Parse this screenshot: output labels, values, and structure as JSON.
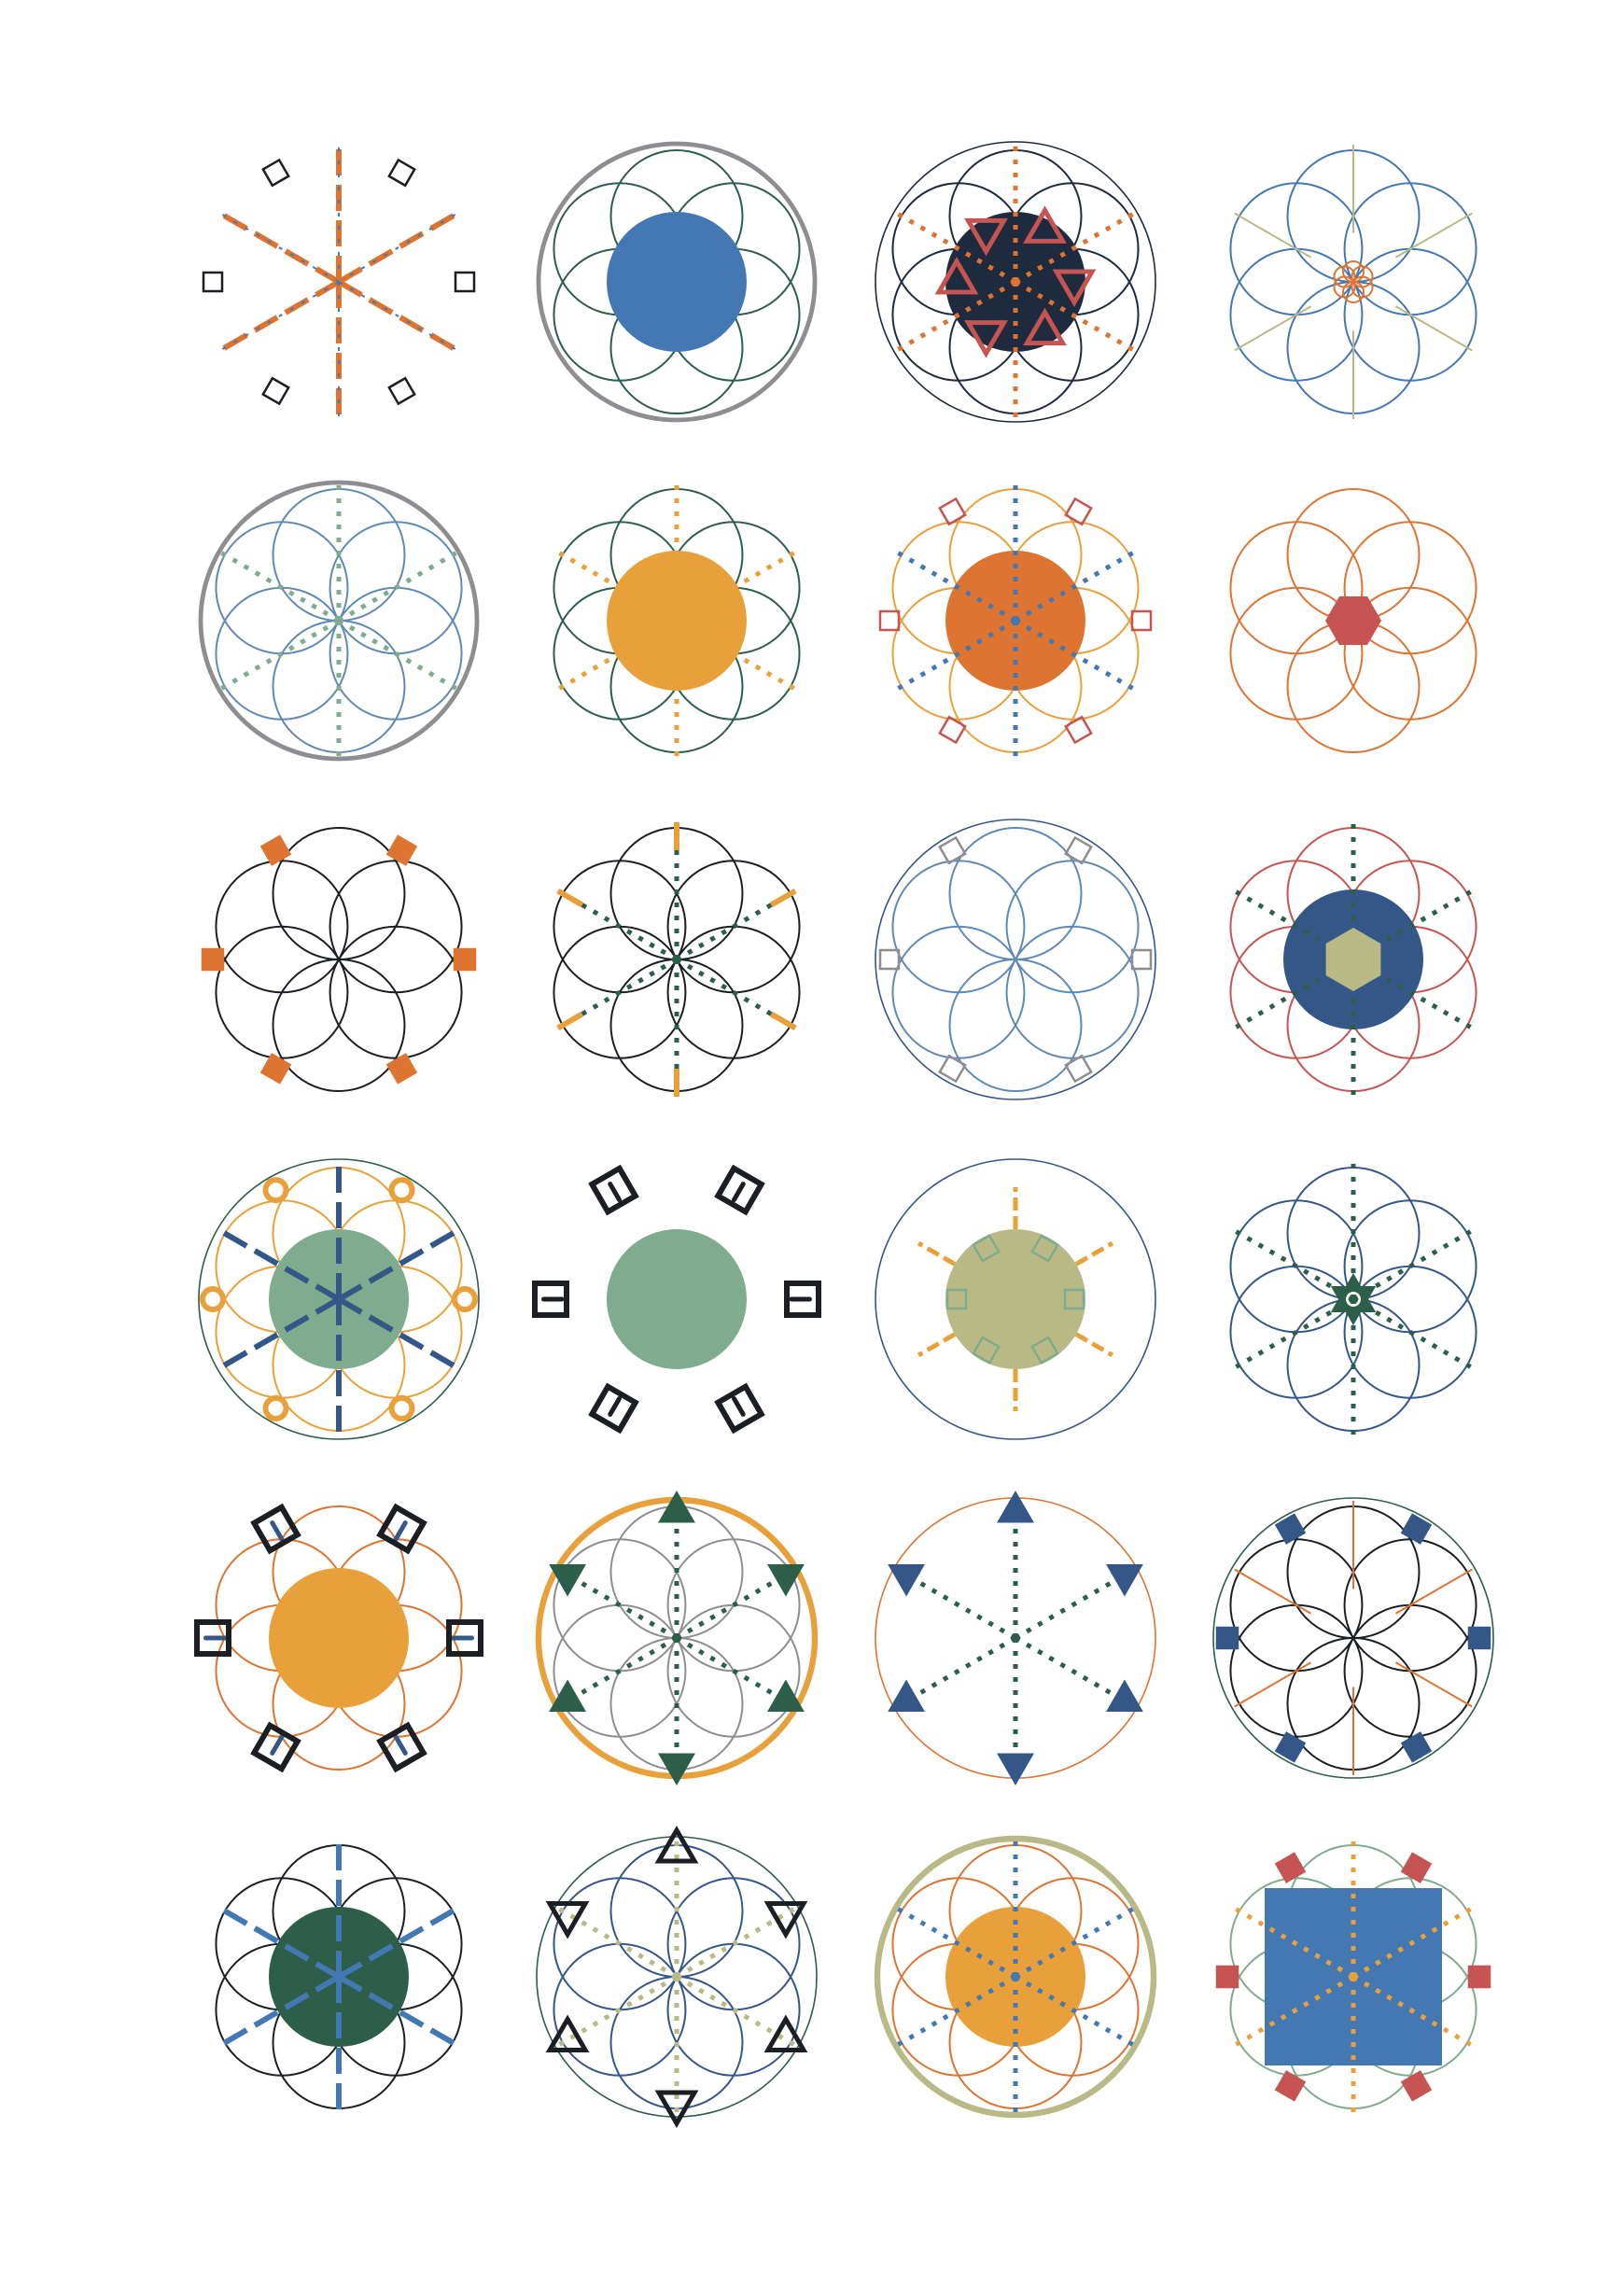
{
  "palette": {
    "black": "#1b1f24",
    "navy": "#1e2a3d",
    "steel": "#345788",
    "blue": "#4478b3",
    "lightblue": "#5e8ab3",
    "green": "#2d5e4a",
    "sage": "#7fab8e",
    "khaki": "#b9b986",
    "orange": "#dd7431",
    "amber": "#e8a13a",
    "red": "#c55452",
    "grey": "#8e8e92"
  },
  "designs": [
    {
      "name": "mandala-01",
      "outer": null,
      "petals": null,
      "center": null,
      "spokes": {
        "color": "orange",
        "style": "dash",
        "alt": "blue"
      },
      "ornaments": {
        "shape": "square",
        "color": "black",
        "fill": false
      }
    },
    {
      "name": "mandala-02",
      "outer": {
        "color": "grey",
        "weight": 3
      },
      "petals": {
        "color": "green"
      },
      "center": {
        "color": "blue",
        "shape": "circle"
      },
      "spokes": null,
      "ornaments": null
    },
    {
      "name": "mandala-03",
      "outer": {
        "color": "navy",
        "weight": 1
      },
      "petals": {
        "color": "navy"
      },
      "center": {
        "color": "navy",
        "shape": "circle"
      },
      "spokes": {
        "color": "orange",
        "style": "dot"
      },
      "ornaments": {
        "shape": "triangle",
        "color": "red",
        "fill": false,
        "inner": true
      }
    },
    {
      "name": "mandala-04",
      "outer": null,
      "petals": {
        "color": "blue"
      },
      "center": {
        "color": "orange",
        "shape": "rosette"
      },
      "spokes": {
        "color": "khaki",
        "style": "line"
      },
      "ornaments": null
    },
    {
      "name": "mandala-05",
      "outer": {
        "color": "grey",
        "weight": 3
      },
      "petals": {
        "color": "lightblue"
      },
      "center": null,
      "spokes": {
        "color": "sage",
        "style": "dot"
      },
      "ornaments": null
    },
    {
      "name": "mandala-06",
      "outer": null,
      "petals": {
        "color": "green"
      },
      "center": {
        "color": "amber",
        "shape": "circle"
      },
      "spokes": {
        "color": "amber",
        "style": "dot"
      },
      "ornaments": null
    },
    {
      "name": "mandala-07",
      "outer": null,
      "petals": {
        "color": "amber"
      },
      "center": {
        "color": "orange",
        "shape": "circle"
      },
      "spokes": {
        "color": "blue",
        "style": "dot"
      },
      "ornaments": {
        "shape": "square",
        "color": "red",
        "fill": false
      }
    },
    {
      "name": "mandala-08",
      "outer": null,
      "petals": {
        "color": "orange"
      },
      "center": {
        "color": "red",
        "shape": "hexagon"
      },
      "spokes": null,
      "ornaments": null
    },
    {
      "name": "mandala-09",
      "outer": null,
      "petals": {
        "color": "black"
      },
      "center": null,
      "spokes": null,
      "ornaments": {
        "shape": "square",
        "color": "orange",
        "fill": true
      }
    },
    {
      "name": "mandala-10",
      "outer": null,
      "petals": {
        "color": "black"
      },
      "center": null,
      "spokes": {
        "color": "green",
        "style": "dot",
        "tip": "amber"
      },
      "ornaments": null
    },
    {
      "name": "mandala-11",
      "outer": {
        "color": "steel",
        "weight": 1
      },
      "petals": {
        "color": "lightblue"
      },
      "center": null,
      "spokes": null,
      "ornaments": {
        "shape": "square",
        "color": "grey",
        "fill": false
      }
    },
    {
      "name": "mandala-12",
      "outer": null,
      "petals": {
        "color": "red"
      },
      "center": {
        "color": "steel",
        "shape": "circle"
      },
      "spokes": {
        "color": "green",
        "style": "dot"
      },
      "ornaments": {
        "shape": "hexagon",
        "color": "khaki",
        "fill": true,
        "inner": true
      }
    },
    {
      "name": "mandala-13",
      "outer": {
        "color": "green",
        "weight": 1
      },
      "petals": {
        "color": "amber"
      },
      "center": {
        "color": "sage",
        "shape": "circle"
      },
      "spokes": {
        "color": "steel",
        "style": "dash"
      },
      "ornaments": {
        "shape": "ring",
        "color": "amber",
        "fill": false
      }
    },
    {
      "name": "mandala-14",
      "outer": null,
      "petals": null,
      "center": {
        "color": "sage",
        "shape": "circle"
      },
      "spokes": {
        "color": "black",
        "style": "tick"
      },
      "ornaments": {
        "shape": "square",
        "color": "black",
        "fill": false,
        "bold": true
      }
    },
    {
      "name": "mandala-15",
      "outer": {
        "color": "steel",
        "weight": 1
      },
      "petals": null,
      "center": {
        "color": "khaki",
        "shape": "circle"
      },
      "spokes": {
        "color": "amber",
        "style": "ray"
      },
      "ornaments": {
        "shape": "square",
        "color": "sage",
        "fill": false,
        "inner": true
      }
    },
    {
      "name": "mandala-16",
      "outer": null,
      "petals": {
        "color": "steel"
      },
      "center": {
        "color": "green",
        "shape": "star"
      },
      "spokes": {
        "color": "green",
        "style": "dot"
      },
      "ornaments": null
    },
    {
      "name": "mandala-17",
      "outer": null,
      "petals": {
        "color": "orange"
      },
      "center": {
        "color": "amber",
        "shape": "circle"
      },
      "spokes": {
        "color": "steel",
        "style": "tick"
      },
      "ornaments": {
        "shape": "square",
        "color": "black",
        "fill": false,
        "bold": true
      }
    },
    {
      "name": "mandala-18",
      "outer": {
        "color": "amber",
        "weight": 4
      },
      "petals": {
        "color": "grey"
      },
      "center": null,
      "spokes": {
        "color": "green",
        "style": "dot"
      },
      "ornaments": {
        "shape": "triangle",
        "color": "green",
        "fill": true
      }
    },
    {
      "name": "mandala-19",
      "outer": {
        "color": "orange",
        "weight": 1
      },
      "petals": null,
      "center": null,
      "spokes": {
        "color": "green",
        "style": "dot"
      },
      "ornaments": {
        "shape": "triangle",
        "color": "steel",
        "fill": true
      }
    },
    {
      "name": "mandala-20",
      "outer": {
        "color": "green",
        "weight": 1
      },
      "petals": {
        "color": "black"
      },
      "center": null,
      "spokes": {
        "color": "orange",
        "style": "line"
      },
      "ornaments": {
        "shape": "square",
        "color": "steel",
        "fill": true
      }
    },
    {
      "name": "mandala-21",
      "outer": null,
      "petals": {
        "color": "black"
      },
      "center": {
        "color": "green",
        "shape": "circle"
      },
      "spokes": {
        "color": "blue",
        "style": "dash"
      },
      "ornaments": null
    },
    {
      "name": "mandala-22",
      "outer": {
        "color": "green",
        "weight": 1
      },
      "petals": {
        "color": "steel"
      },
      "center": null,
      "spokes": {
        "color": "khaki",
        "style": "dot"
      },
      "ornaments": {
        "shape": "triangle",
        "color": "black",
        "fill": false
      }
    },
    {
      "name": "mandala-23",
      "outer": {
        "color": "khaki",
        "weight": 4
      },
      "petals": {
        "color": "orange"
      },
      "center": {
        "color": "amber",
        "shape": "circle"
      },
      "spokes": {
        "color": "blue",
        "style": "dot"
      },
      "ornaments": null
    },
    {
      "name": "mandala-24",
      "outer": null,
      "petals": {
        "color": "sage"
      },
      "center": {
        "color": "blue",
        "shape": "square"
      },
      "spokes": {
        "color": "amber",
        "style": "dot"
      },
      "ornaments": {
        "shape": "square",
        "color": "red",
        "fill": true
      }
    }
  ]
}
